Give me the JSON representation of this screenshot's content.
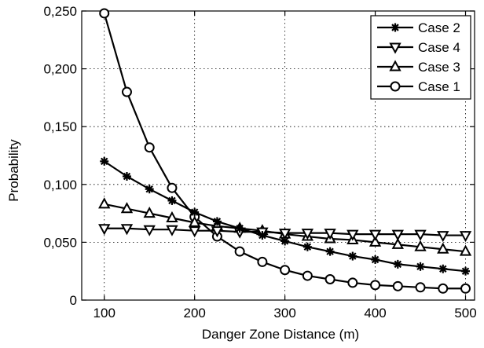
{
  "chart_data": {
    "type": "line",
    "title": "",
    "xlabel": "Danger Zone Distance (m)",
    "ylabel": "Probability",
    "xlim": [
      75,
      510
    ],
    "ylim": [
      0,
      0.25
    ],
    "xticks": [
      100,
      200,
      300,
      400,
      500
    ],
    "xtick_labels": [
      "100",
      "200",
      "300",
      "400",
      "500"
    ],
    "yticks": [
      0,
      0.05,
      0.1,
      0.15,
      0.2,
      0.25
    ],
    "ytick_labels": [
      "0",
      "0,050",
      "0,100",
      "0,150",
      "0,200",
      "0,250"
    ],
    "grid": true,
    "legend_position": "top-right",
    "x": [
      100,
      125,
      150,
      175,
      200,
      225,
      250,
      275,
      300,
      325,
      350,
      375,
      400,
      425,
      450,
      475,
      500
    ],
    "series": [
      {
        "name": "Case 2",
        "marker": "asterisk",
        "values": [
          0.12,
          0.107,
          0.096,
          0.086,
          0.076,
          0.068,
          0.062,
          0.056,
          0.051,
          0.046,
          0.042,
          0.038,
          0.035,
          0.031,
          0.029,
          0.027,
          0.025
        ]
      },
      {
        "name": "Case 4",
        "marker": "triangle-down",
        "values": [
          0.062,
          0.062,
          0.061,
          0.061,
          0.06,
          0.06,
          0.059,
          0.059,
          0.058,
          0.058,
          0.058,
          0.057,
          0.057,
          0.057,
          0.057,
          0.056,
          0.056
        ]
      },
      {
        "name": "Case 3",
        "marker": "triangle-up",
        "values": [
          0.083,
          0.079,
          0.075,
          0.071,
          0.067,
          0.064,
          0.062,
          0.06,
          0.057,
          0.055,
          0.053,
          0.052,
          0.05,
          0.048,
          0.046,
          0.044,
          0.042
        ]
      },
      {
        "name": "Case 1",
        "marker": "circle",
        "values": [
          0.248,
          0.18,
          0.132,
          0.097,
          0.072,
          0.055,
          0.042,
          0.033,
          0.026,
          0.021,
          0.018,
          0.015,
          0.013,
          0.012,
          0.011,
          0.01,
          0.01
        ]
      }
    ]
  }
}
